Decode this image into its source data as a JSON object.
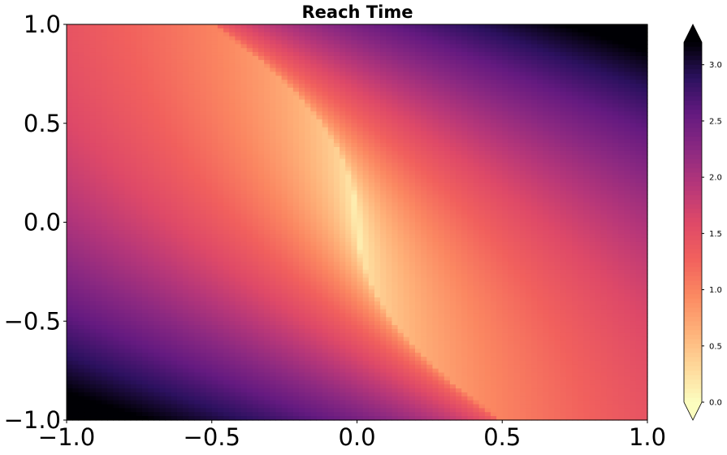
{
  "chart_data": {
    "type": "heatmap",
    "title": "Reach Time",
    "xlabel": "",
    "ylabel": "",
    "xlim": [
      -1.0,
      1.0
    ],
    "ylim": [
      -1.0,
      1.0
    ],
    "x_ticks": [
      "−1.0",
      "−0.5",
      "0.0",
      "0.5",
      "1.0"
    ],
    "y_ticks": [
      "−1.0",
      "−0.5",
      "0.0",
      "0.5",
      "1.0"
    ],
    "x_tick_values": [
      -1.0,
      -0.5,
      0.0,
      0.5,
      1.0
    ],
    "y_tick_values": [
      -1.0,
      -0.5,
      0.0,
      0.5,
      1.0
    ],
    "colormap": "magma_r",
    "grid": false,
    "colorbar": {
      "range": [
        0.0,
        3.2
      ],
      "ticks": [
        "0.0",
        "0.5",
        "1.0",
        "1.5",
        "2.0",
        "2.5",
        "3.0"
      ],
      "tick_values": [
        0.0,
        0.5,
        1.0,
        1.5,
        2.0,
        2.5,
        3.0
      ],
      "extend": "both",
      "upper_extension_color": "#000004",
      "lower_extension_color": "#fcfdbf"
    },
    "switching_curve": [
      {
        "y": 1.0,
        "x": -0.48
      },
      {
        "y": 0.8,
        "x": -0.3
      },
      {
        "y": 0.6,
        "x": -0.17
      },
      {
        "y": 0.4,
        "x": -0.07
      },
      {
        "y": 0.2,
        "x": -0.02
      },
      {
        "y": 0.0,
        "x": 0.0
      },
      {
        "y": -0.2,
        "x": 0.02
      },
      {
        "y": -0.4,
        "x": 0.07
      },
      {
        "y": -0.6,
        "x": 0.17
      },
      {
        "y": -0.8,
        "x": 0.3
      },
      {
        "y": -1.0,
        "x": 0.48
      }
    ],
    "corner_values": {
      "top_right": 3.2,
      "bottom_left": 3.2,
      "top_left": 1.25,
      "bottom_right": 1.25,
      "origin": 0.0
    }
  }
}
